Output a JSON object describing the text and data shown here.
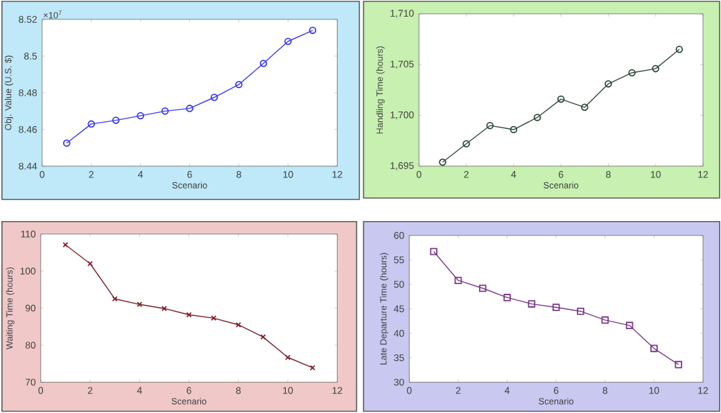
{
  "chart_data": [
    {
      "type": "line",
      "xlabel": "Scenario",
      "ylabel": "Obj. Value (U.S. $)",
      "annotations": [
        "×10$^{7}$"
      ],
      "x": [
        1,
        2,
        3,
        4,
        5,
        6,
        7,
        8,
        9,
        10,
        11
      ],
      "series": [
        {
          "color": "#3a3af0",
          "values": [
            8.4526,
            8.463,
            8.465,
            8.4675,
            8.47,
            8.4715,
            8.4775,
            8.4845,
            8.496,
            8.508,
            8.514
          ]
        }
      ],
      "marker": "circle",
      "xlim": [
        0,
        12
      ],
      "xticks": [
        0,
        2,
        4,
        6,
        8,
        10,
        12
      ],
      "ylim": [
        8.44,
        8.52
      ],
      "yticks": [
        8.44,
        8.46,
        8.48,
        8.5,
        8.52
      ],
      "grid": false
    },
    {
      "type": "line",
      "xlabel": "Scenario",
      "ylabel": "Handling Time (hours)",
      "x": [
        1,
        2,
        3,
        4,
        5,
        6,
        7,
        8,
        9,
        10,
        11
      ],
      "series": [
        {
          "color": "#2f4a3a",
          "values": [
            1695.4,
            1697.2,
            1699.0,
            1698.6,
            1699.8,
            1701.6,
            1700.8,
            1703.1,
            1704.2,
            1704.6,
            1706.5
          ]
        }
      ],
      "marker": "circle",
      "xlim": [
        0,
        12
      ],
      "xticks": [
        0,
        2,
        4,
        6,
        8,
        10,
        12
      ],
      "ylim": [
        1695,
        1710
      ],
      "yticks": [
        {
          "value": 1695,
          "label": "1,695"
        },
        {
          "value": 1700,
          "label": "1,700"
        },
        {
          "value": 1705,
          "label": "1,705"
        },
        {
          "value": 1710,
          "label": "1,710"
        }
      ],
      "grid": false
    },
    {
      "type": "line",
      "xlabel": "Scenario",
      "ylabel": "Waiting Time (hours)",
      "x": [
        1,
        2,
        3,
        4,
        5,
        6,
        7,
        8,
        9,
        10,
        11
      ],
      "series": [
        {
          "color": "#7a1f2a",
          "values": [
            107.1,
            102,
            92.5,
            91,
            89.9,
            88.2,
            87.3,
            85.5,
            82.2,
            76.7,
            73.9
          ]
        }
      ],
      "marker": "cross",
      "xlim": [
        0,
        12
      ],
      "xticks": [
        0,
        2,
        4,
        6,
        8,
        10,
        12
      ],
      "ylim": [
        70,
        110
      ],
      "yticks": [
        70,
        80,
        90,
        100,
        110
      ],
      "grid": false
    },
    {
      "type": "line",
      "xlabel": "Scenario",
      "ylabel": "Late Departure Time (hours)",
      "x": [
        1,
        2,
        3,
        4,
        5,
        6,
        7,
        8,
        9,
        10,
        11
      ],
      "series": [
        {
          "color": "#7a3a8a",
          "values": [
            56.7,
            50.8,
            49.2,
            47.3,
            46.0,
            45.3,
            44.5,
            42.7,
            41.6,
            36.9,
            33.6
          ]
        }
      ],
      "marker": "square",
      "xlim": [
        0,
        12
      ],
      "xticks": [
        0,
        2,
        4,
        6,
        8,
        10,
        12
      ],
      "ylim": [
        30,
        60
      ],
      "yticks": [
        30,
        35,
        40,
        45,
        50,
        55,
        60
      ],
      "grid": false
    }
  ]
}
